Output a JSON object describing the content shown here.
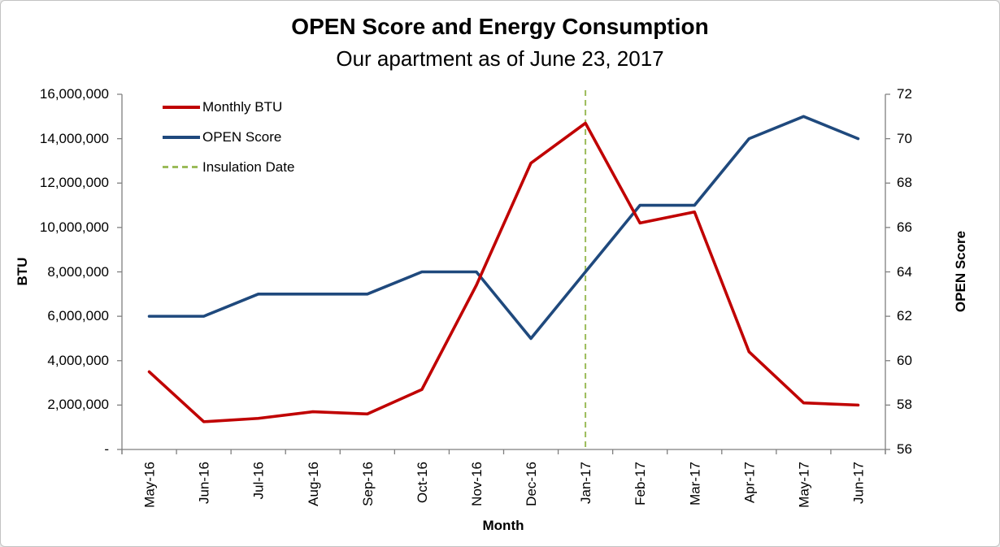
{
  "chart_data": {
    "type": "line",
    "title": "OPEN Score and Energy Consumption",
    "subtitle": "Our apartment as of June 23, 2017",
    "categories": [
      "May-16",
      "Jun-16",
      "Jul-16",
      "Aug-16",
      "Sep-16",
      "Oct-16",
      "Nov-16",
      "Dec-16",
      "Jan-17",
      "Feb-17",
      "Mar-17",
      "Apr-17",
      "May-17",
      "Jun-17"
    ],
    "series": [
      {
        "name": "OPEN Score",
        "axis": "right",
        "color": "#1f497d",
        "values": [
          62,
          62,
          63,
          63,
          63,
          64,
          64,
          61,
          64,
          67,
          67,
          70,
          71,
          70
        ]
      },
      {
        "name": "Monthly BTU",
        "axis": "left",
        "color": "#c00000",
        "values": [
          3500000,
          1250000,
          1400000,
          1700000,
          1600000,
          2700000,
          7400000,
          12900000,
          14700000,
          10200000,
          10700000,
          4400000,
          2100000,
          2000000
        ]
      }
    ],
    "annotations": [
      {
        "type": "vline",
        "label": "Insulation Date",
        "category": "Jan-17",
        "color": "#9bbb59",
        "line_style": "dashed"
      }
    ],
    "left_axis": {
      "label": "BTU",
      "min": 0,
      "max": 16000000,
      "step": 2000000,
      "tick_labels_top_to_bottom": [
        "16,000,000",
        "14,000,000",
        "12,000,000",
        "10,000,000",
        "8,000,000",
        "6,000,000",
        "4,000,000",
        "2,000,000",
        "-"
      ]
    },
    "right_axis": {
      "label": "OPEN Score",
      "min": 56,
      "max": 72,
      "step": 2,
      "tick_labels_top_to_bottom": [
        "72",
        "70",
        "68",
        "66",
        "64",
        "62",
        "60",
        "58",
        "56"
      ]
    },
    "x_axis": {
      "label": "Month"
    },
    "legend_order": [
      "Monthly BTU",
      "OPEN Score",
      "Insulation Date"
    ],
    "legend_position": "top-left-inside",
    "grid": false,
    "axis_line_color": "#7f7f7f",
    "frame_border_color": "#c2c2c2"
  }
}
